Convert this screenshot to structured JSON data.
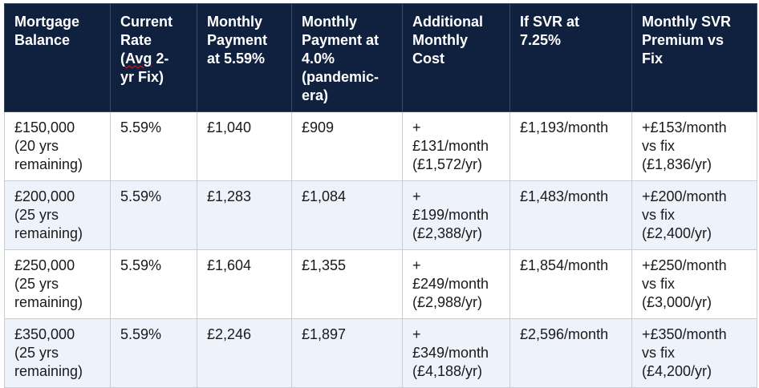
{
  "table": {
    "headers": [
      "Mortgage\nBalance",
      "Current\nRate\n(Avg 2-\nyr Fix)",
      "Monthly\nPayment\nat 5.59%",
      "Monthly\nPayment at\n4.0%\n(pandemic-\nera)",
      "Additional\nMonthly\nCost",
      "If SVR at\n7.25%",
      "Monthly SVR\nPremium vs\nFix"
    ],
    "rows": [
      [
        "£150,000\n(20 yrs\nremaining)",
        "5.59%",
        "£1,040",
        "£909",
        "+\n£131/month\n(£1,572/yr)",
        "£1,193/month",
        "+£153/month\nvs fix\n(£1,836/yr)"
      ],
      [
        "£200,000\n(25 yrs\nremaining)",
        "5.59%",
        "£1,283",
        "£1,084",
        "+\n£199/month\n(£2,388/yr)",
        "£1,483/month",
        "+£200/month\nvs fix\n(£2,400/yr)"
      ],
      [
        "£250,000\n(25 yrs\nremaining)",
        "5.59%",
        "£1,604",
        "£1,355",
        "+\n£249/month\n(£2,988/yr)",
        "£1,854/month",
        "+£250/month\nvs fix\n(£3,000/yr)"
      ],
      [
        "£350,000\n(25 yrs\nremaining)",
        "5.59%",
        "£2,246",
        "£1,897",
        "+\n£349/month\n(£4,188/yr)",
        "£2,596/month",
        "+£350/month\nvs fix\n(£4,200/yr)"
      ]
    ]
  }
}
